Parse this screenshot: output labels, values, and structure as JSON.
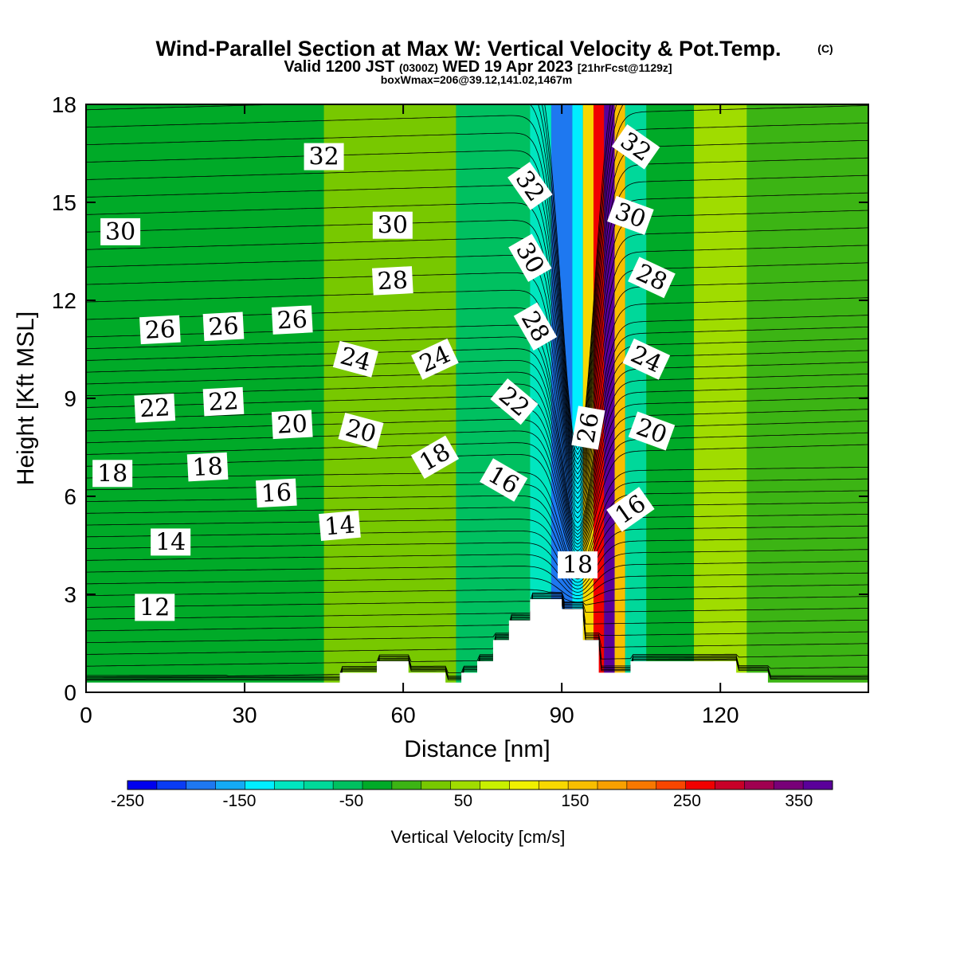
{
  "title": {
    "main": "Wind-Parallel Section at Max W: Vertical Velocity & Pot.Temp.",
    "copyright": "(C)",
    "valid_prefix": "Valid 1200 JST",
    "valid_z": "(0300Z)",
    "valid_date": "WED 19 Apr 2023",
    "valid_fcst": "[21hrFcst@1129z]",
    "box_info": "boxWmax=206@39.12,141.02,1467m"
  },
  "colorbar": {
    "label": "Vertical Velocity [cm/s]",
    "tick_labels": [
      "-250",
      "-150",
      "-50",
      "50",
      "150",
      "250",
      "350"
    ],
    "colors": [
      "#0000ee",
      "#0a3cf4",
      "#1e78f0",
      "#14aaf5",
      "#00eeff",
      "#00e6c0",
      "#00d89a",
      "#00c060",
      "#00aa28",
      "#3cb414",
      "#78c800",
      "#a0dc00",
      "#c8f000",
      "#f0f000",
      "#f8d800",
      "#f8be00",
      "#f8a000",
      "#f87800",
      "#f84600",
      "#f00000",
      "#c80028",
      "#a00050",
      "#780078",
      "#5a009a"
    ]
  },
  "chart_data": {
    "type": "heatmap",
    "xlabel": "Distance [nm]",
    "ylabel": "Height [Kft MSL]",
    "xlim": [
      0,
      148
    ],
    "ylim": [
      0,
      18
    ],
    "x_tick_labels": [
      "0",
      "30",
      "60",
      "90",
      "120"
    ],
    "y_tick_labels": [
      "0",
      "3",
      "6",
      "9",
      "12",
      "15",
      "18"
    ],
    "x_ticks": [
      0,
      30,
      60,
      90,
      120
    ],
    "y_ticks": [
      0,
      3,
      6,
      9,
      12,
      15,
      18
    ],
    "color_field": "Vertical Velocity [cm/s]",
    "w_range": [
      -250,
      380
    ],
    "velocity_bands": [
      {
        "x": [
          0,
          45
        ],
        "w": -40
      },
      {
        "x": [
          45,
          70
        ],
        "w": 25
      },
      {
        "x": [
          70,
          84
        ],
        "w": -50
      },
      {
        "x": [
          84,
          88
        ],
        "w": -110
      },
      {
        "x": [
          88,
          92
        ],
        "w": -190
      },
      {
        "x": [
          92,
          94
        ],
        "w": -130
      },
      {
        "x": [
          94,
          96
        ],
        "w": 130
      },
      {
        "x": [
          96,
          98
        ],
        "w": 260
      },
      {
        "x": [
          98,
          100
        ],
        "w": 360
      },
      {
        "x": [
          100,
          102
        ],
        "w": 150
      },
      {
        "x": [
          102,
          106
        ],
        "w": -80
      },
      {
        "x": [
          106,
          115
        ],
        "w": -40
      },
      {
        "x": [
          115,
          125
        ],
        "w": 60
      },
      {
        "x": [
          125,
          148
        ],
        "w": 5
      }
    ],
    "contours": {
      "field": "Potential Temperature",
      "levels": [
        12,
        14,
        16,
        18,
        20,
        22,
        24,
        26,
        28,
        30,
        32
      ]
    },
    "contour_labels": [
      {
        "text": "32",
        "x": 45,
        "y": 16.4,
        "angle": 0
      },
      {
        "text": "30",
        "x": 6.5,
        "y": 14.1,
        "angle": 0
      },
      {
        "text": "30",
        "x": 58,
        "y": 14.3,
        "angle": 0
      },
      {
        "text": "28",
        "x": 58,
        "y": 12.6,
        "angle": -3
      },
      {
        "text": "26",
        "x": 14,
        "y": 11.1,
        "angle": -3
      },
      {
        "text": "26",
        "x": 26,
        "y": 11.2,
        "angle": -3
      },
      {
        "text": "26",
        "x": 39,
        "y": 11.4,
        "angle": -3
      },
      {
        "text": "24",
        "x": 51,
        "y": 10.2,
        "angle": 15
      },
      {
        "text": "24",
        "x": 66,
        "y": 10.2,
        "angle": -25
      },
      {
        "text": "22",
        "x": 13,
        "y": 8.7,
        "angle": -3
      },
      {
        "text": "22",
        "x": 26,
        "y": 8.9,
        "angle": -3
      },
      {
        "text": "20",
        "x": 39,
        "y": 8.2,
        "angle": -3
      },
      {
        "text": "20",
        "x": 52,
        "y": 8.0,
        "angle": 15
      },
      {
        "text": "18",
        "x": 5,
        "y": 6.7,
        "angle": 0
      },
      {
        "text": "18",
        "x": 23,
        "y": 6.9,
        "angle": -3
      },
      {
        "text": "18",
        "x": 66,
        "y": 7.2,
        "angle": -30
      },
      {
        "text": "16",
        "x": 36,
        "y": 6.1,
        "angle": -3
      },
      {
        "text": "16",
        "x": 79,
        "y": 6.5,
        "angle": 30
      },
      {
        "text": "16",
        "x": 103,
        "y": 5.6,
        "angle": -35
      },
      {
        "text": "14",
        "x": 16,
        "y": 4.6,
        "angle": 0
      },
      {
        "text": "14",
        "x": 48,
        "y": 5.1,
        "angle": -5
      },
      {
        "text": "12",
        "x": 13,
        "y": 2.6,
        "angle": 0
      },
      {
        "text": "22",
        "x": 81,
        "y": 8.9,
        "angle": 40
      },
      {
        "text": "28",
        "x": 85,
        "y": 11.2,
        "angle": 60
      },
      {
        "text": "30",
        "x": 84,
        "y": 13.3,
        "angle": 60
      },
      {
        "text": "32",
        "x": 84,
        "y": 15.5,
        "angle": 55
      },
      {
        "text": "26",
        "x": 95,
        "y": 8.1,
        "angle": -80
      },
      {
        "text": "18",
        "x": 93,
        "y": 3.9,
        "angle": 0
      },
      {
        "text": "32",
        "x": 104,
        "y": 16.7,
        "angle": 35
      },
      {
        "text": "30",
        "x": 103,
        "y": 14.6,
        "angle": 20
      },
      {
        "text": "28",
        "x": 107,
        "y": 12.7,
        "angle": 25
      },
      {
        "text": "24",
        "x": 106,
        "y": 10.2,
        "angle": 25
      },
      {
        "text": "20",
        "x": 107,
        "y": 8.0,
        "angle": 20
      }
    ],
    "terrain": [
      {
        "x": [
          0,
          48
        ],
        "h": 0.3
      },
      {
        "x": [
          48,
          55
        ],
        "h": 0.6
      },
      {
        "x": [
          55,
          61
        ],
        "h": 0.95
      },
      {
        "x": [
          61,
          68
        ],
        "h": 0.6
      },
      {
        "x": [
          68,
          71
        ],
        "h": 0.3
      },
      {
        "x": [
          71,
          74
        ],
        "h": 0.6
      },
      {
        "x": [
          74,
          77
        ],
        "h": 0.95
      },
      {
        "x": [
          77,
          80
        ],
        "h": 1.6
      },
      {
        "x": [
          80,
          84
        ],
        "h": 2.2
      },
      {
        "x": [
          84,
          90
        ],
        "h": 2.85
      },
      {
        "x": [
          90,
          94
        ],
        "h": 2.55
      },
      {
        "x": [
          94,
          97
        ],
        "h": 1.6
      },
      {
        "x": [
          97,
          103
        ],
        "h": 0.6
      },
      {
        "x": [
          103,
          123
        ],
        "h": 0.95
      },
      {
        "x": [
          123,
          129
        ],
        "h": 0.6
      },
      {
        "x": [
          129,
          148
        ],
        "h": 0.3
      }
    ]
  }
}
